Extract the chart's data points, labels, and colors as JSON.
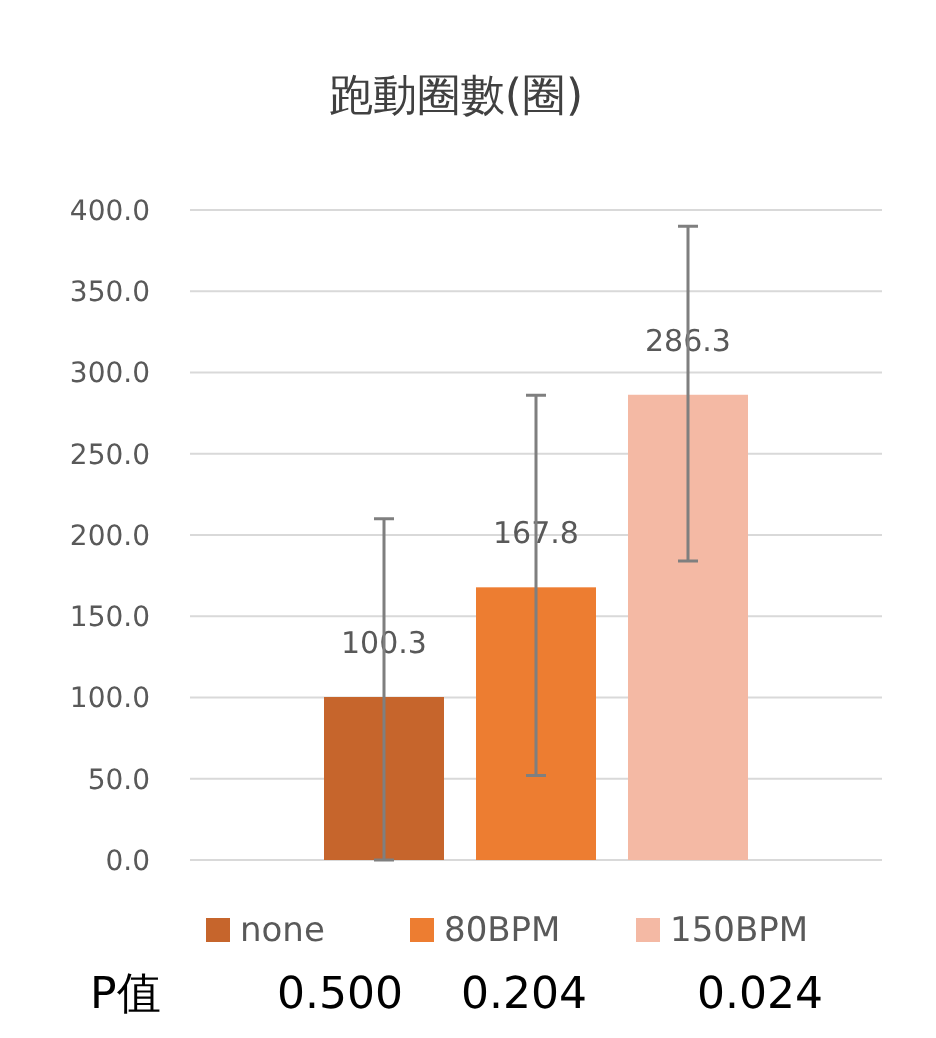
{
  "chart_data": {
    "type": "bar",
    "title": "跑動圈數(圈)",
    "categories": [
      null
    ],
    "series": [
      {
        "name": "none",
        "color": "#c6652c",
        "values": [
          100.3
        ],
        "errors": [
          [
            0,
            210
          ]
        ]
      },
      {
        "name": "80BPM",
        "color": "#ed7d31",
        "values": [
          167.8
        ],
        "errors": [
          [
            52,
            286
          ]
        ]
      },
      {
        "name": "150BPM",
        "color": "#f4b9a4",
        "values": [
          286.3
        ],
        "errors": [
          [
            184,
            390
          ]
        ]
      }
    ],
    "ylim": [
      0,
      400
    ],
    "yticks": [
      {
        "value": 0,
        "label": "0.0"
      },
      {
        "value": 50,
        "label": "50.0"
      },
      {
        "value": 100,
        "label": "100.0"
      },
      {
        "value": 150,
        "label": "150.0"
      },
      {
        "value": 200,
        "label": "200.0"
      },
      {
        "value": 250,
        "label": "250.0"
      },
      {
        "value": 300,
        "label": "300.0"
      },
      {
        "value": 350,
        "label": "350.0"
      },
      {
        "value": 400,
        "label": "400.0"
      }
    ],
    "grid": "y",
    "legend": "bottom",
    "data_labels": true,
    "annotations": [
      "P值",
      "0.500",
      "0.204",
      "0.024"
    ]
  }
}
